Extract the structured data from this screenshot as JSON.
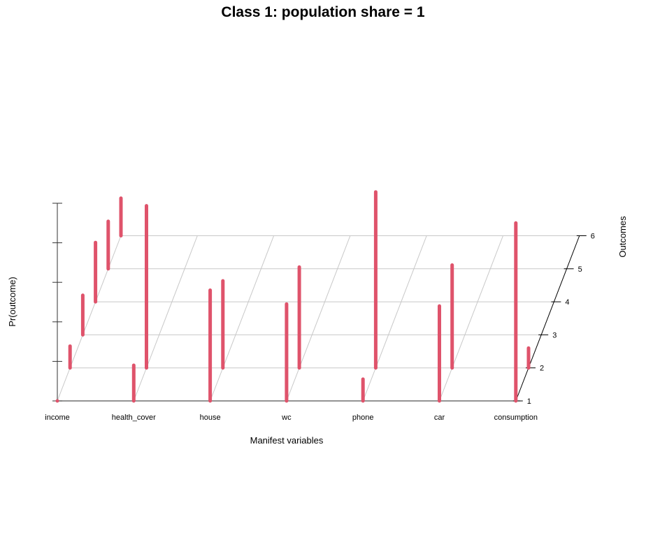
{
  "chart_data": {
    "type": "bar3d",
    "title": "Class 1: population share = 1",
    "xlabel": "Manifest variables",
    "ylabel": "Outcomes",
    "zlabel": "Pr(outcome)",
    "categories": [
      "income",
      "health_cover",
      "house",
      "wc",
      "phone",
      "car",
      "consumption"
    ],
    "outcome_ticks": [
      "1",
      "2",
      "3",
      "4",
      "5",
      "6"
    ],
    "zlim": [
      0,
      1
    ],
    "grid": true,
    "bar_color": "#DF536B",
    "bars": [
      {
        "variable": "income",
        "outcome": 1,
        "value": 0.0
      },
      {
        "variable": "income",
        "outcome": 2,
        "value": 0.11
      },
      {
        "variable": "income",
        "outcome": 3,
        "value": 0.2
      },
      {
        "variable": "income",
        "outcome": 4,
        "value": 0.3
      },
      {
        "variable": "income",
        "outcome": 5,
        "value": 0.24
      },
      {
        "variable": "income",
        "outcome": 6,
        "value": 0.19
      },
      {
        "variable": "health_cover",
        "outcome": 1,
        "value": 0.18
      },
      {
        "variable": "health_cover",
        "outcome": 2,
        "value": 0.82
      },
      {
        "variable": "house",
        "outcome": 1,
        "value": 0.56
      },
      {
        "variable": "house",
        "outcome": 2,
        "value": 0.44
      },
      {
        "variable": "wc",
        "outcome": 1,
        "value": 0.49
      },
      {
        "variable": "wc",
        "outcome": 2,
        "value": 0.51
      },
      {
        "variable": "phone",
        "outcome": 1,
        "value": 0.11
      },
      {
        "variable": "phone",
        "outcome": 2,
        "value": 0.89
      },
      {
        "variable": "car",
        "outcome": 1,
        "value": 0.48
      },
      {
        "variable": "car",
        "outcome": 2,
        "value": 0.52
      },
      {
        "variable": "consumption",
        "outcome": 1,
        "value": 0.9
      },
      {
        "variable": "consumption",
        "outcome": 2,
        "value": 0.1
      }
    ]
  }
}
